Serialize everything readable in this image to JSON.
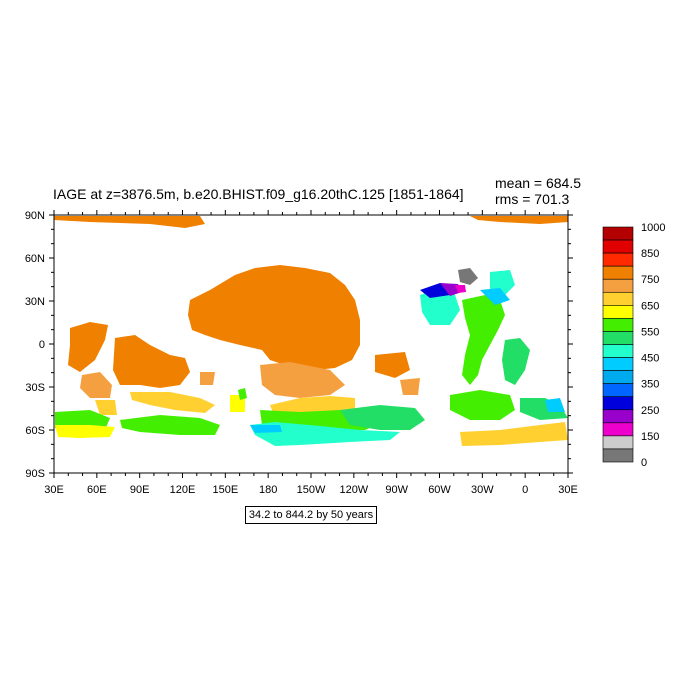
{
  "title": "IAGE at z=3876.5m, b.e20.BHIST.f09_g16.20thC.125 [1851-1864]",
  "stats": {
    "mean": "mean = 684.5",
    "rms": "rms = 701.3"
  },
  "contour_info": "34.2 to 844.2 by 50 years",
  "map": {
    "projection": "cylindrical equidistant, centered 180",
    "lon_range": [
      30,
      390
    ],
    "lat_range": [
      -90,
      90
    ],
    "lon_ticks": [
      "30E",
      "60E",
      "90E",
      "120E",
      "150E",
      "180",
      "150W",
      "120W",
      "90W",
      "60W",
      "30W",
      "0",
      "30E"
    ],
    "lat_ticks": [
      "90N",
      "60N",
      "30N",
      "0",
      "30S",
      "60S",
      "90S"
    ],
    "land_color": "#ffffff"
  },
  "colorbar": {
    "labels": [
      "1000",
      "850",
      "750",
      "650",
      "550",
      "450",
      "350",
      "250",
      "150",
      "0"
    ],
    "colors": [
      "#b30000",
      "#e00000",
      "#ff2a00",
      "#f08000",
      "#f5a040",
      "#ffd030",
      "#ffff00",
      "#44ee00",
      "#22dd66",
      "#22ffcc",
      "#00ccff",
      "#00aaee",
      "#0066ff",
      "#0000dd",
      "#9900cc",
      "#ee00cc",
      "#cccccc",
      "#777777"
    ]
  },
  "field_regions": [
    {
      "name": "indian-ocean-north",
      "color": "#f08000"
    },
    {
      "name": "north-pacific",
      "color": "#f08000"
    },
    {
      "name": "central-pacific",
      "color": "#f5a040"
    },
    {
      "name": "south-pacific",
      "color": "#ffd030"
    },
    {
      "name": "southern-ocean-indian",
      "color": "#44ee00"
    },
    {
      "name": "southern-ocean-pacific",
      "color": "#22dd66"
    },
    {
      "name": "antarctic-pacific",
      "color": "#22ffcc"
    },
    {
      "name": "north-atlantic",
      "color": "#22ffcc"
    },
    {
      "name": "labrador-sea",
      "color": "#0000dd"
    },
    {
      "name": "arctic",
      "color": "#f08000"
    },
    {
      "name": "atlantic-central",
      "color": "#44ee00"
    },
    {
      "name": "south-atlantic",
      "color": "#22dd66"
    },
    {
      "name": "weddell",
      "color": "#ffd030"
    }
  ]
}
